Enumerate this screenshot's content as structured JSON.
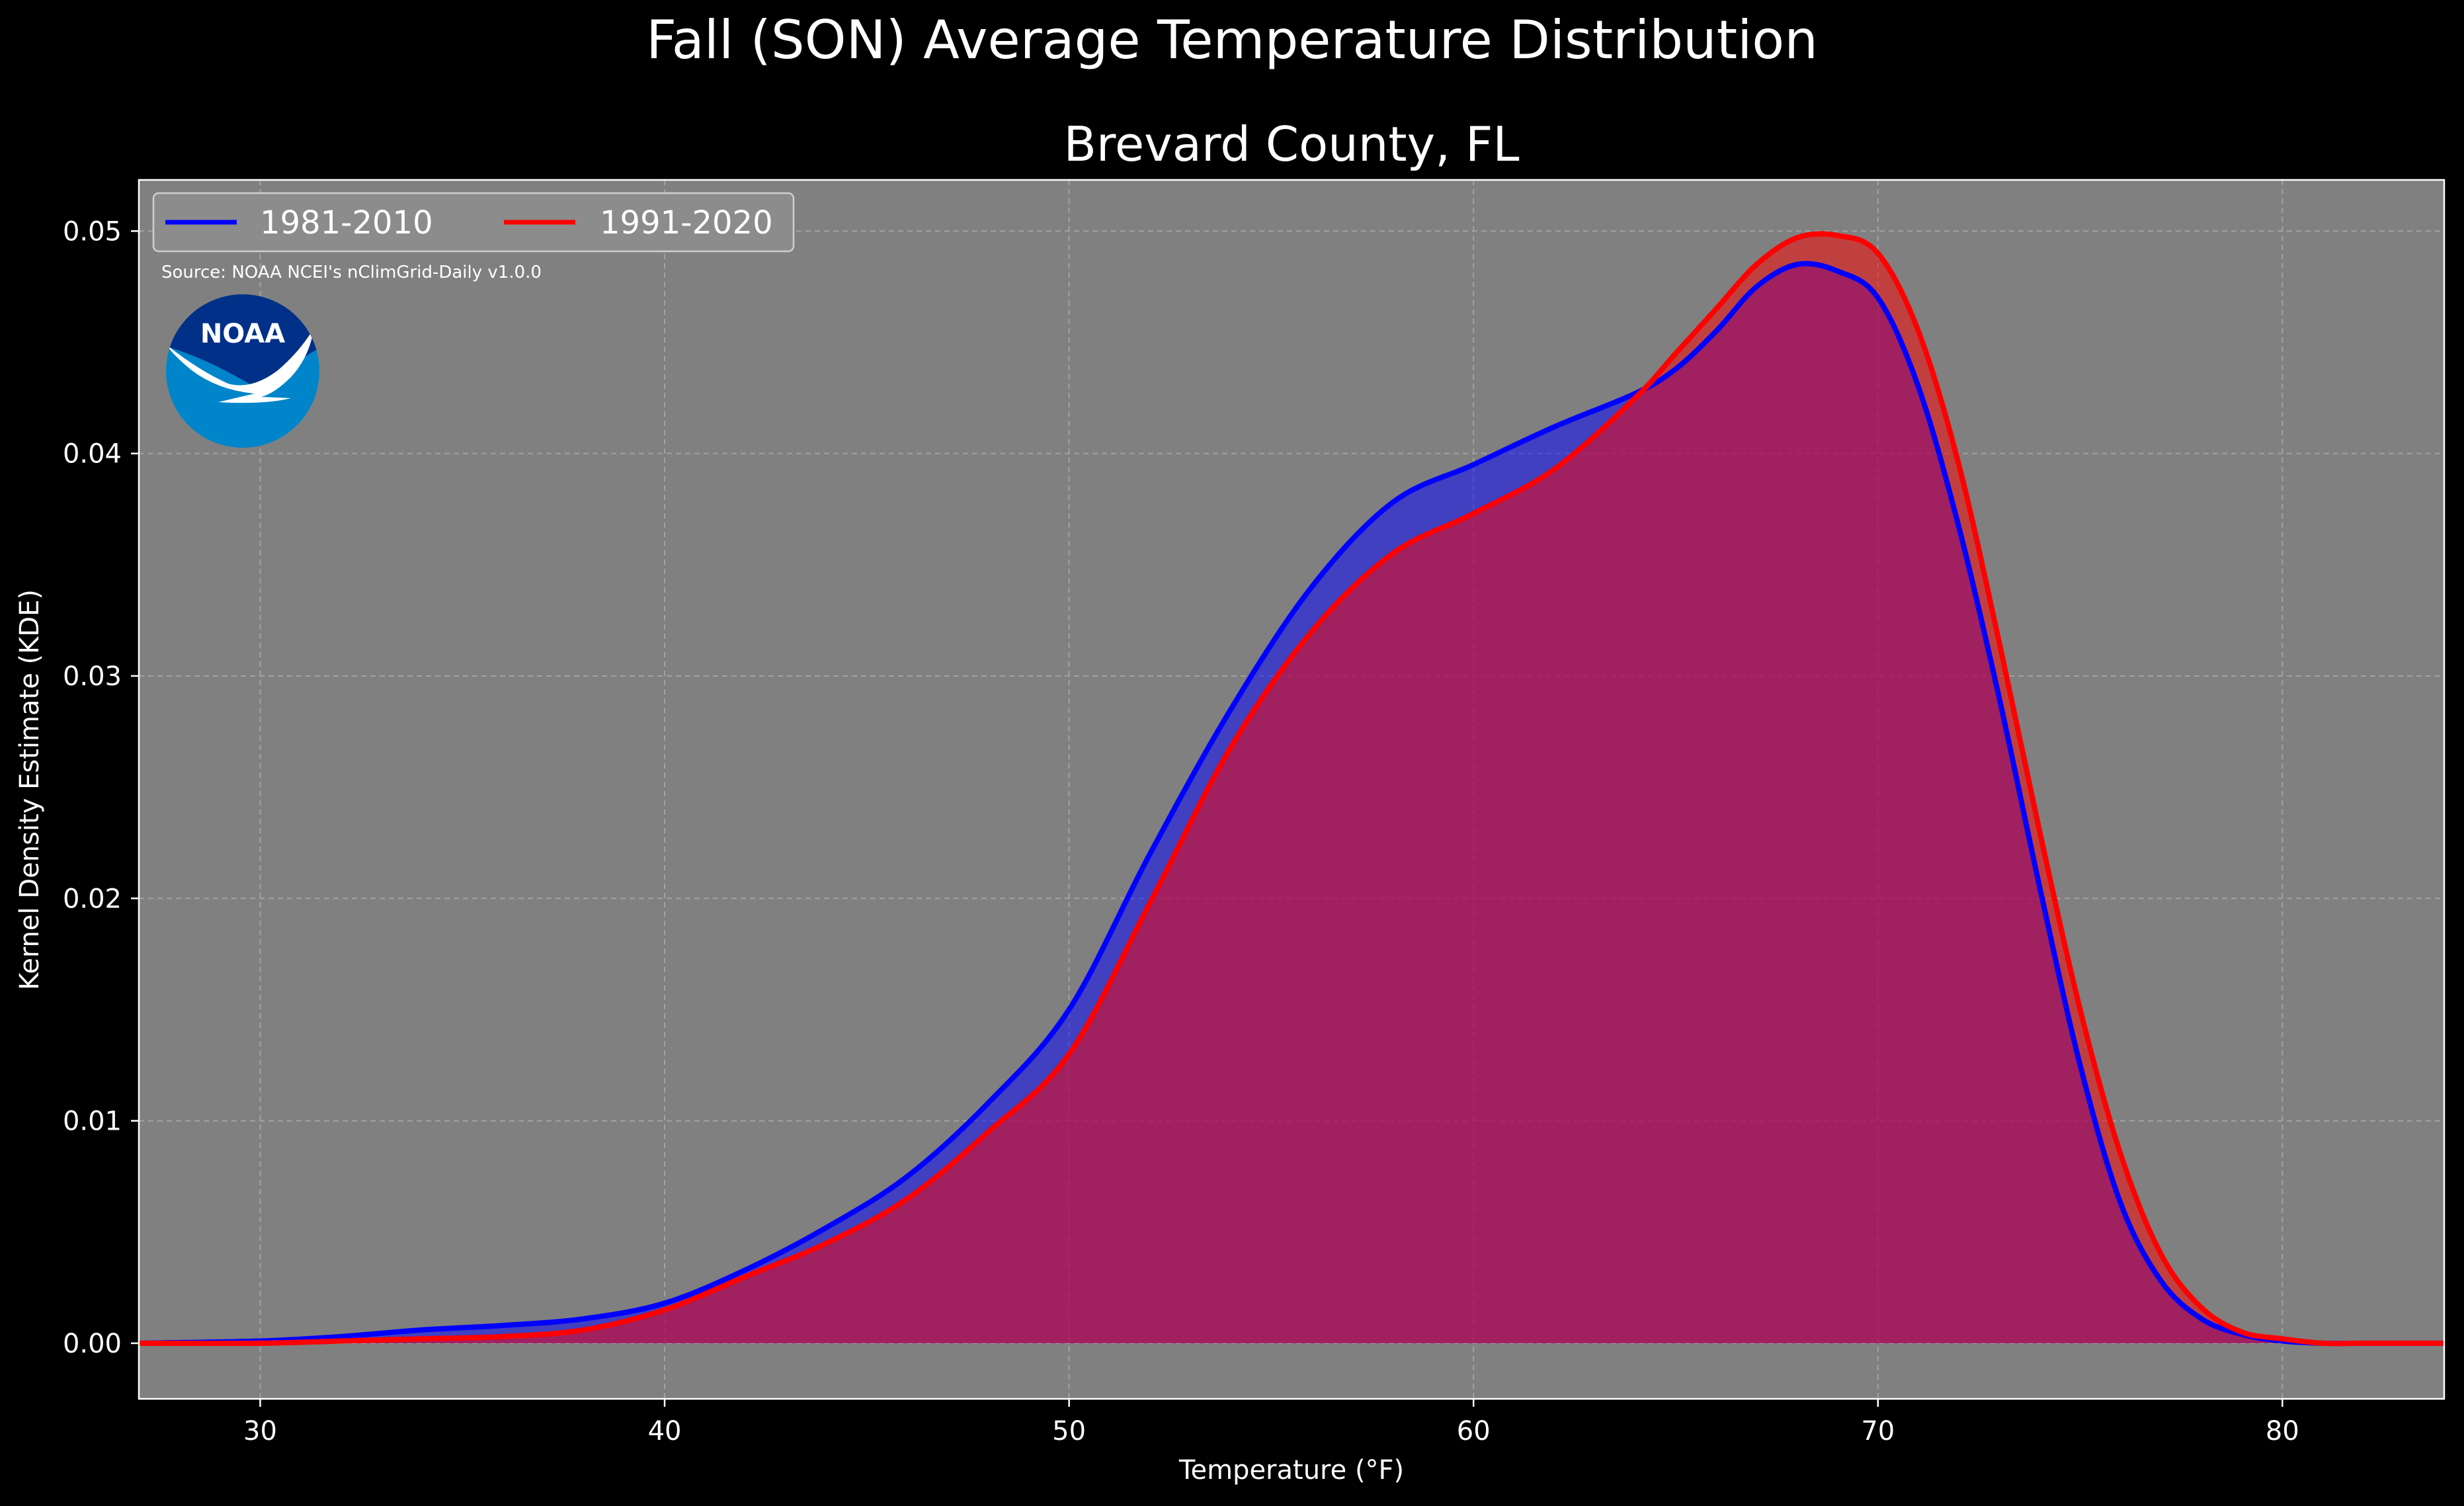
{
  "chart_data": {
    "type": "area",
    "suptitle": "Fall (SON) Average Temperature Distribution",
    "title": "Brevard County, FL",
    "xlabel": "Temperature (°F)",
    "ylabel": "Kernel Density Estimate (KDE)",
    "xlim": [
      27,
      84
    ],
    "ylim": [
      -0.0025,
      0.0523
    ],
    "xticks": [
      30,
      40,
      50,
      60,
      70,
      80
    ],
    "xtick_labels": [
      "30",
      "40",
      "50",
      "60",
      "70",
      "80"
    ],
    "yticks": [
      0.0,
      0.01,
      0.02,
      0.03,
      0.04,
      0.05
    ],
    "ytick_labels": [
      "0.00",
      "0.01",
      "0.02",
      "0.03",
      "0.04",
      "0.05"
    ],
    "grid": true,
    "legend_position": "top-left",
    "annotation": "Source: NOAA NCEI's nClimGrid-Daily v1.0.0",
    "logo_text": "NOAA",
    "colors": {
      "figure_bg": "#000000",
      "axes_bg": "#808080",
      "grid": "#b0b0b0",
      "series_1981": "#0000ff",
      "series_1991": "#ff0000",
      "logo_dark": "#003087",
      "logo_light": "#0085ca"
    },
    "series": [
      {
        "name": "1981-2010",
        "color": "#0000ff",
        "x": [
          27,
          30,
          32,
          34,
          36,
          38,
          40,
          42,
          44,
          46,
          48,
          50,
          52,
          54,
          56,
          58,
          60,
          62,
          64,
          65,
          66,
          67,
          68,
          69,
          70,
          71,
          72,
          73,
          74,
          75,
          76,
          77,
          78,
          79,
          80,
          81,
          82,
          84
        ],
        "y": [
          0,
          0.0001,
          0.0003,
          0.0006,
          0.0008,
          0.0011,
          0.0018,
          0.0033,
          0.0052,
          0.0075,
          0.0108,
          0.015,
          0.022,
          0.0285,
          0.034,
          0.0378,
          0.0395,
          0.0412,
          0.0427,
          0.0438,
          0.0455,
          0.0475,
          0.0485,
          0.0482,
          0.047,
          0.043,
          0.0367,
          0.029,
          0.0205,
          0.0125,
          0.0063,
          0.0028,
          0.0011,
          0.0004,
          0.0001,
          0,
          0,
          0
        ]
      },
      {
        "name": "1991-2020",
        "color": "#ff0000",
        "x": [
          27,
          30,
          32,
          34,
          36,
          38,
          40,
          42,
          44,
          46,
          48,
          50,
          52,
          54,
          56,
          58,
          60,
          62,
          64,
          65,
          66,
          67,
          68,
          69,
          70,
          71,
          72,
          73,
          74,
          75,
          76,
          77,
          78,
          79,
          80,
          81,
          82,
          84
        ],
        "y": [
          0,
          0,
          0.0001,
          0.0002,
          0.0003,
          0.0006,
          0.0015,
          0.003,
          0.0045,
          0.0065,
          0.0095,
          0.013,
          0.0198,
          0.0268,
          0.032,
          0.0355,
          0.0373,
          0.0393,
          0.0425,
          0.0445,
          0.0465,
          0.0485,
          0.0497,
          0.0498,
          0.049,
          0.0455,
          0.0395,
          0.0315,
          0.023,
          0.015,
          0.0085,
          0.004,
          0.0016,
          0.0005,
          0.0002,
          0,
          0,
          0
        ]
      }
    ]
  }
}
